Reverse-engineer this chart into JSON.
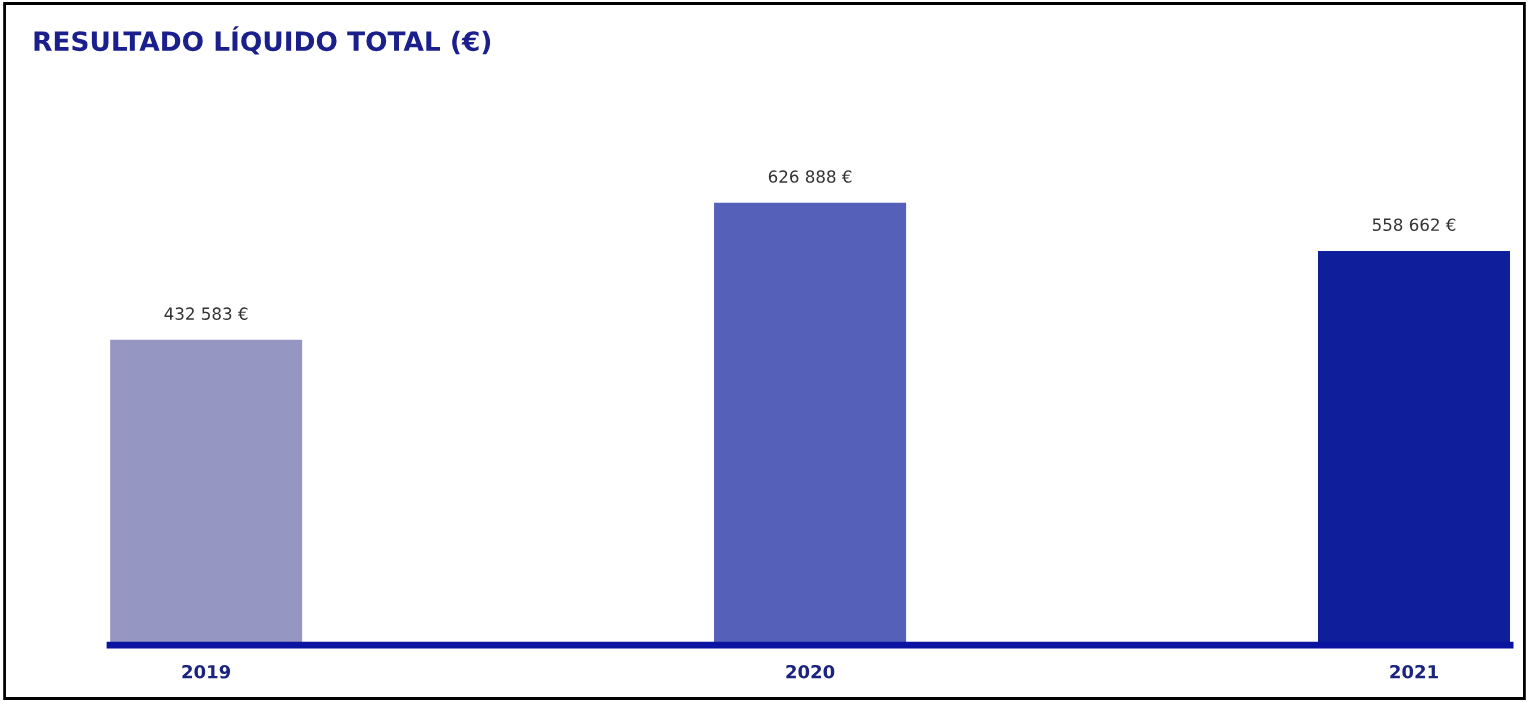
{
  "chart_data": {
    "type": "bar",
    "title": "RESULTADO LÍQUIDO TOTAL (€)",
    "categories": [
      "2019",
      "2020",
      "2021"
    ],
    "values": [
      432583,
      626888,
      558662
    ],
    "colors": [
      "#9696c2",
      "#5560b9",
      "#0f1e9a"
    ],
    "value_labels": [
      "432 583 €",
      "626 888 €",
      "558 662 €"
    ],
    "grid": false,
    "legend": false
  }
}
